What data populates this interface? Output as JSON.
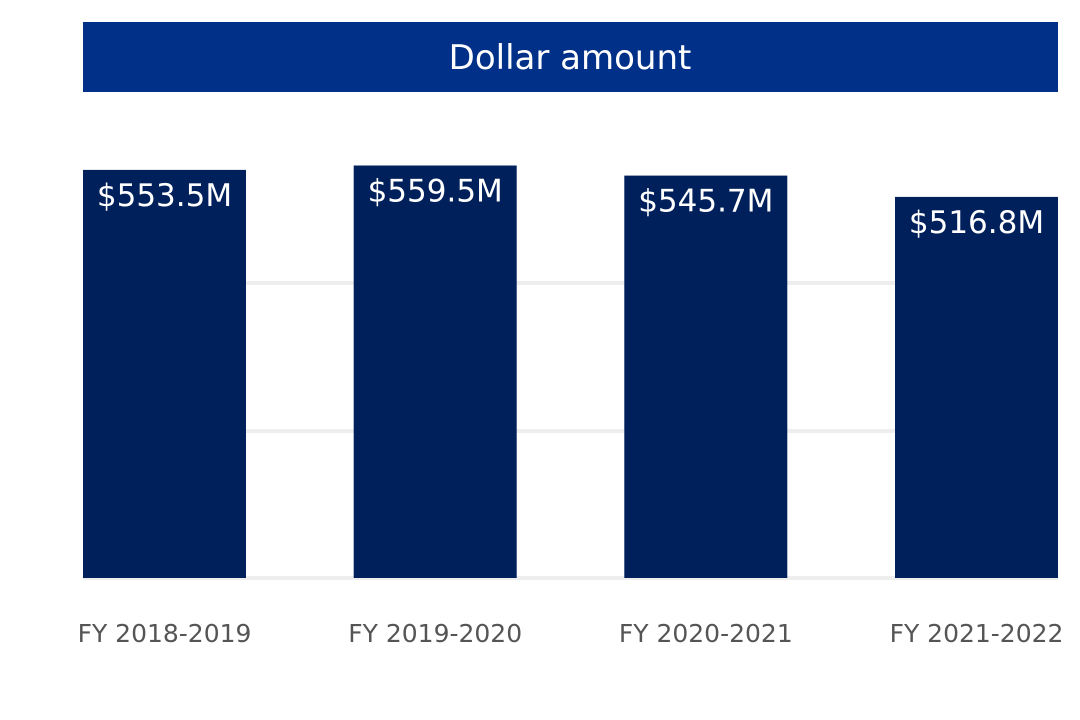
{
  "chart_data": {
    "type": "bar",
    "title": "Dollar amount",
    "categories": [
      "FY 2018-2019",
      "FY 2019-2020",
      "FY 2020-2021",
      "FY 2021-2022"
    ],
    "values": [
      553.5,
      559.5,
      545.7,
      516.8
    ],
    "value_labels": [
      "$553.5M",
      "$559.5M",
      "$545.7M",
      "$516.8M"
    ],
    "xlabel": "",
    "ylabel": "",
    "ylim": [
      0,
      750
    ],
    "gridlines": [
      0,
      200,
      400
    ],
    "grid": true,
    "legend": "none",
    "colors": {
      "bar": "#00205b",
      "title_band": "#003087",
      "gridline": "#eeeeee",
      "tick_text": "#555555",
      "label_text": "#ffffff"
    }
  }
}
